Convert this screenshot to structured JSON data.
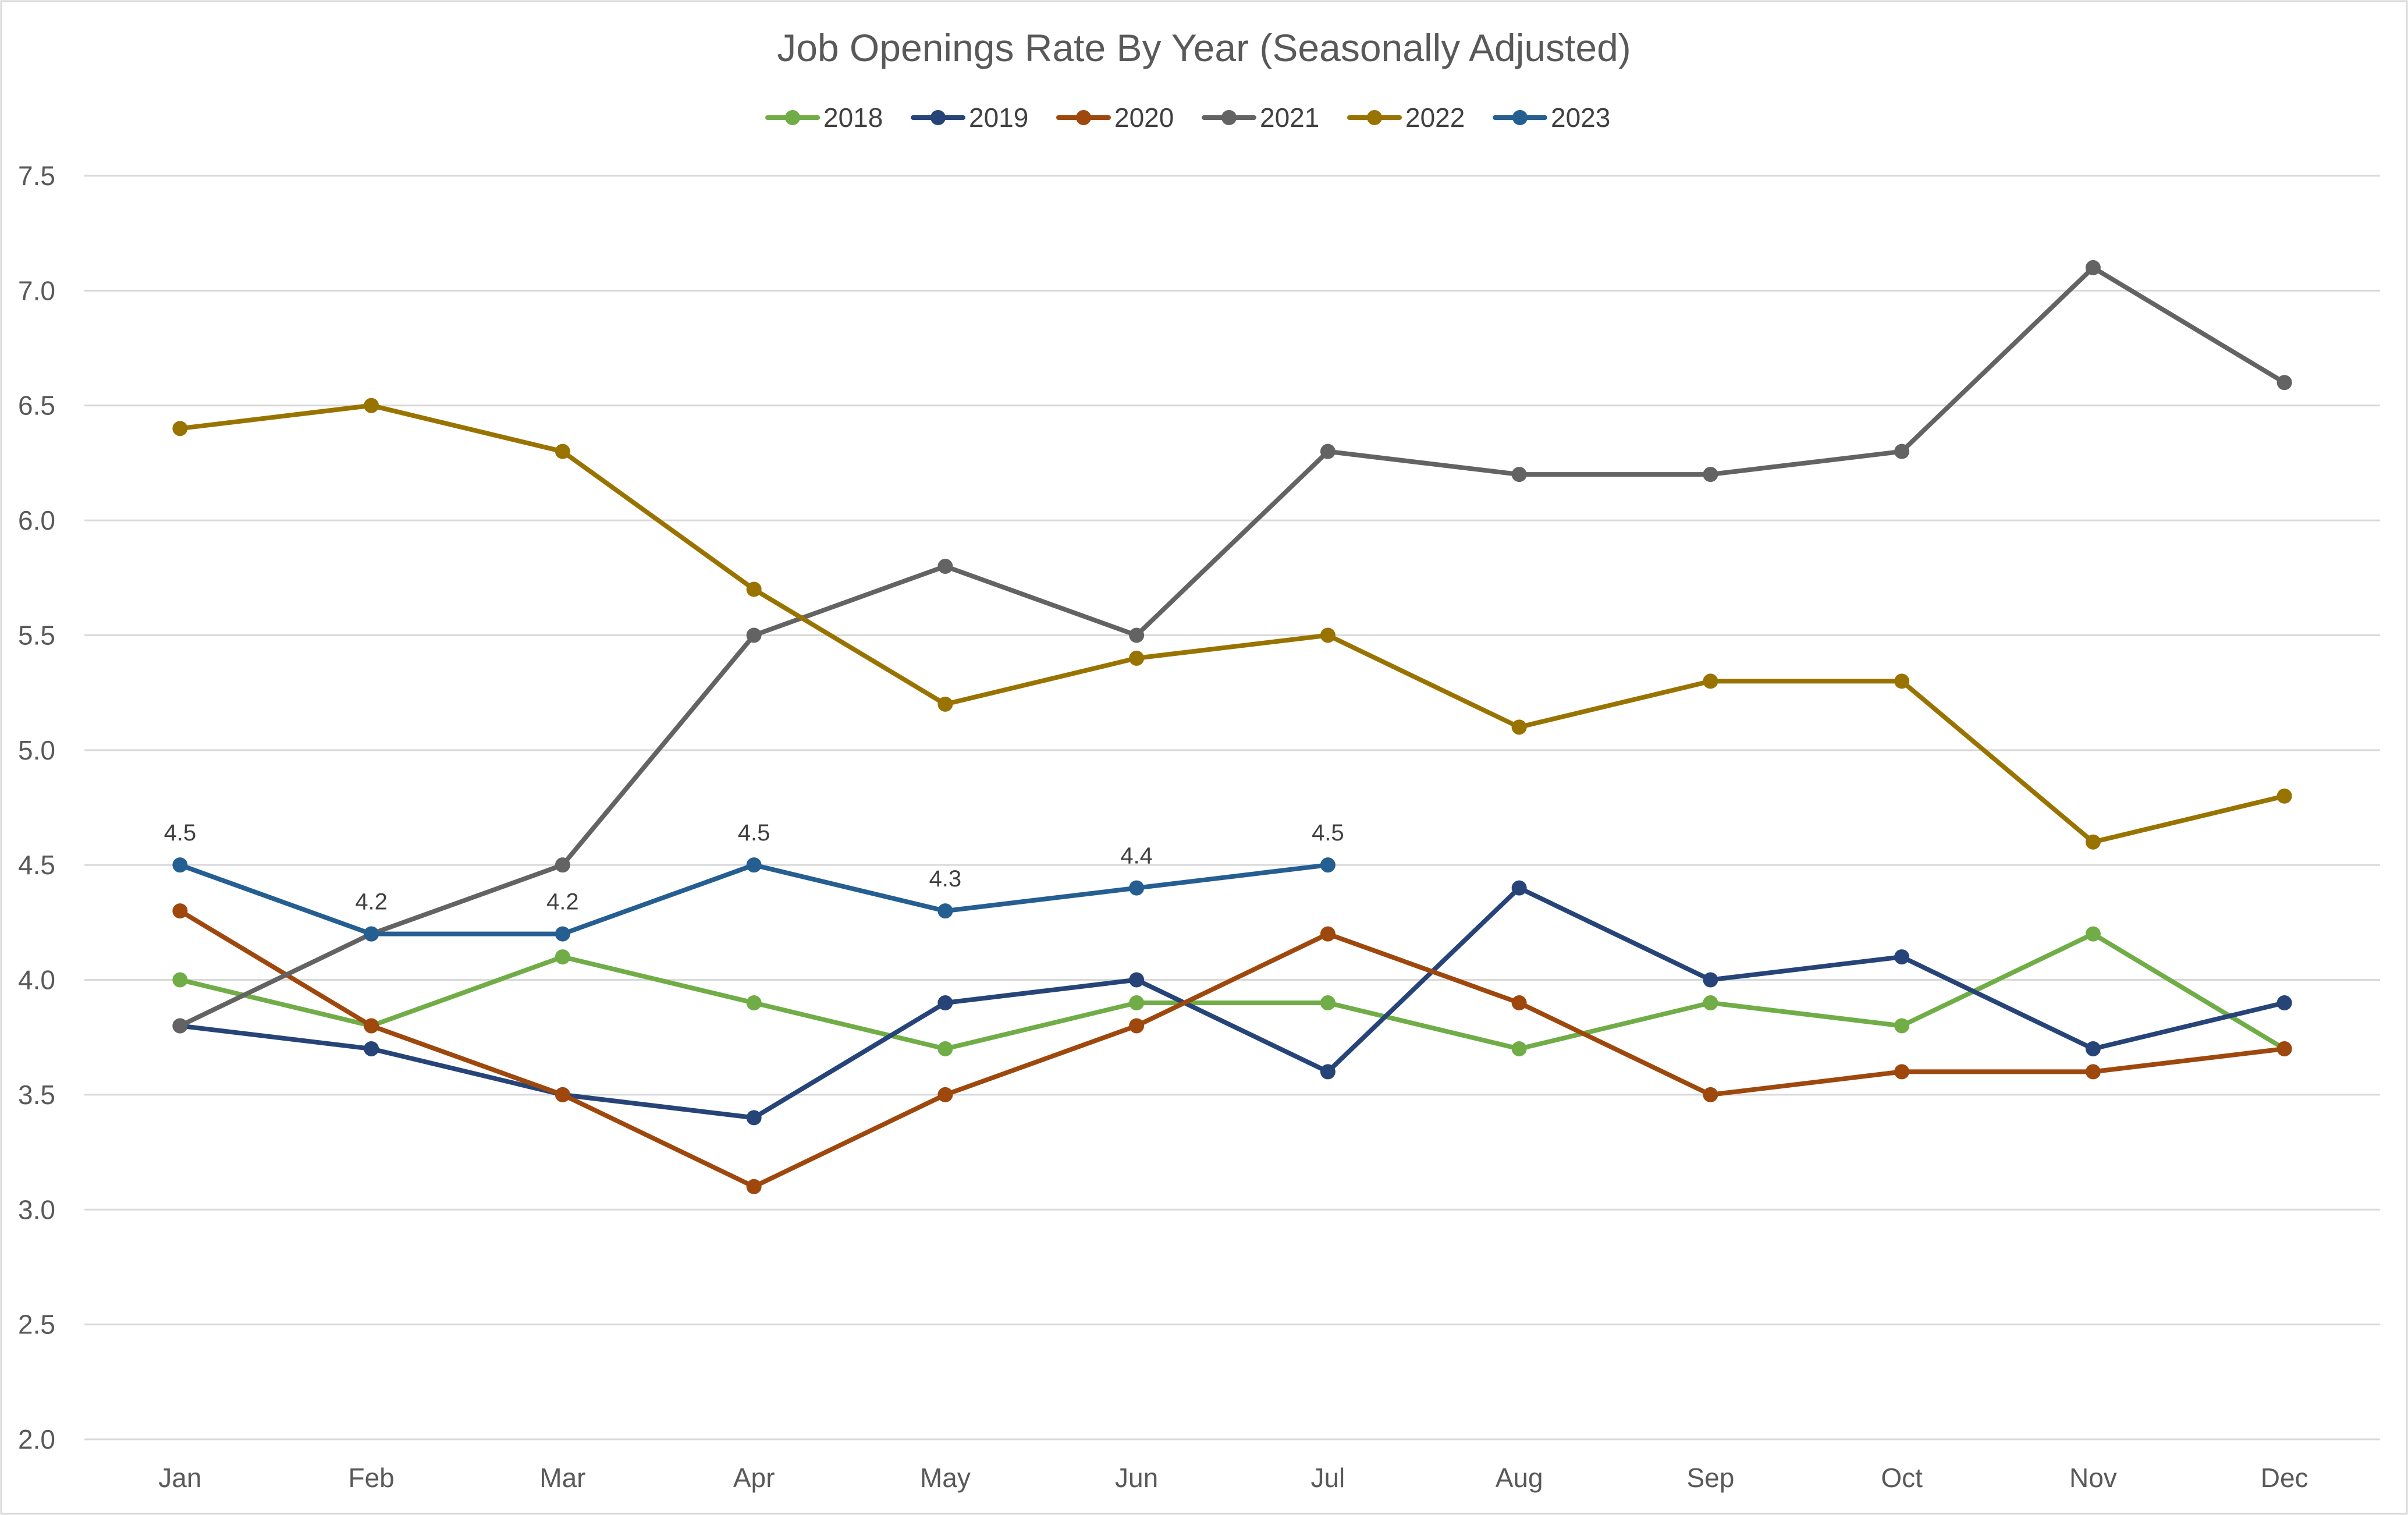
{
  "chart_data": {
    "type": "line",
    "title": "Job Openings Rate By Year (Seasonally Adjusted)",
    "xlabel": "",
    "ylabel": "",
    "ylim": [
      2.0,
      7.5
    ],
    "y_ticks": [
      "2.0",
      "2.5",
      "3.0",
      "3.5",
      "4.0",
      "4.5",
      "5.0",
      "5.5",
      "6.0",
      "6.5",
      "7.0",
      "7.5"
    ],
    "grid": "horizontal",
    "legend_position": "top",
    "categories": [
      "Jan",
      "Feb",
      "Mar",
      "Apr",
      "May",
      "Jun",
      "Jul",
      "Aug",
      "Sep",
      "Oct",
      "Nov",
      "Dec"
    ],
    "series": [
      {
        "name": "2018",
        "color": "#70AD47",
        "values": [
          4.0,
          3.8,
          4.1,
          3.9,
          3.7,
          3.9,
          3.9,
          3.7,
          3.9,
          3.8,
          4.2,
          3.7
        ]
      },
      {
        "name": "2019",
        "color": "#264478",
        "values": [
          3.8,
          3.7,
          3.5,
          3.4,
          3.9,
          4.0,
          3.6,
          4.4,
          4.0,
          4.1,
          3.7,
          3.9
        ]
      },
      {
        "name": "2020",
        "color": "#9E480E",
        "values": [
          4.3,
          3.8,
          3.5,
          3.1,
          3.5,
          3.8,
          4.2,
          3.9,
          3.5,
          3.6,
          3.6,
          3.7
        ]
      },
      {
        "name": "2021",
        "color": "#636363",
        "values": [
          3.8,
          4.2,
          4.5,
          5.5,
          5.8,
          5.5,
          6.3,
          6.2,
          6.2,
          6.3,
          7.1,
          6.6
        ]
      },
      {
        "name": "2022",
        "color": "#997300",
        "values": [
          6.4,
          6.5,
          6.3,
          5.7,
          5.2,
          5.4,
          5.5,
          5.1,
          5.3,
          5.3,
          4.6,
          4.8
        ]
      },
      {
        "name": "2023",
        "color": "#255E91",
        "values": [
          4.5,
          4.2,
          4.2,
          4.5,
          4.3,
          4.4,
          4.5,
          null,
          null,
          null,
          null,
          null
        ],
        "data_labels": [
          "4.5",
          "4.2",
          "4.2",
          "4.5",
          "4.3",
          "4.4",
          "4.5"
        ]
      }
    ]
  }
}
